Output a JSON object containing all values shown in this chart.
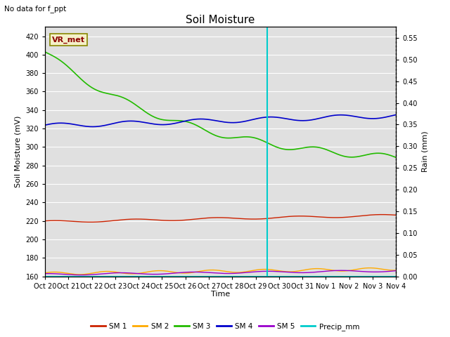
{
  "title": "Soil Moisture",
  "subtitle": "No data for f_ppt",
  "ylabel_left": "Soil Moisture (mV)",
  "ylabel_right": "Rain (mm)",
  "xlabel": "Time",
  "ylim_left": [
    160,
    430
  ],
  "ylim_right": [
    0.0,
    0.575
  ],
  "yticks_left": [
    160,
    180,
    200,
    220,
    240,
    260,
    280,
    300,
    320,
    340,
    360,
    380,
    400,
    420
  ],
  "yticks_right": [
    0.0,
    0.05,
    0.1,
    0.15,
    0.2,
    0.25,
    0.3,
    0.35,
    0.4,
    0.45,
    0.5,
    0.55
  ],
  "x_labels": [
    "Oct 20",
    "Oct 21",
    "Oct 22",
    "Oct 23",
    "Oct 24",
    "Oct 25",
    "Oct 26",
    "Oct 27",
    "Oct 28",
    "Oct 29",
    "Oct 30",
    "Oct 31",
    "Nov 1",
    "Nov 2",
    "Nov 3",
    "Nov 4"
  ],
  "n_ticks": 16,
  "vline_x": 9.5,
  "legend_label": "VR_met",
  "colors": {
    "SM1": "#cc2200",
    "SM2": "#ffaa00",
    "SM3": "#22bb00",
    "SM4": "#0000cc",
    "SM5": "#9900cc",
    "Precip": "#00cccc",
    "vline": "#00cccc",
    "bg": "#e0e0e0"
  },
  "title_fontsize": 11,
  "label_fontsize": 8,
  "tick_fontsize": 7
}
